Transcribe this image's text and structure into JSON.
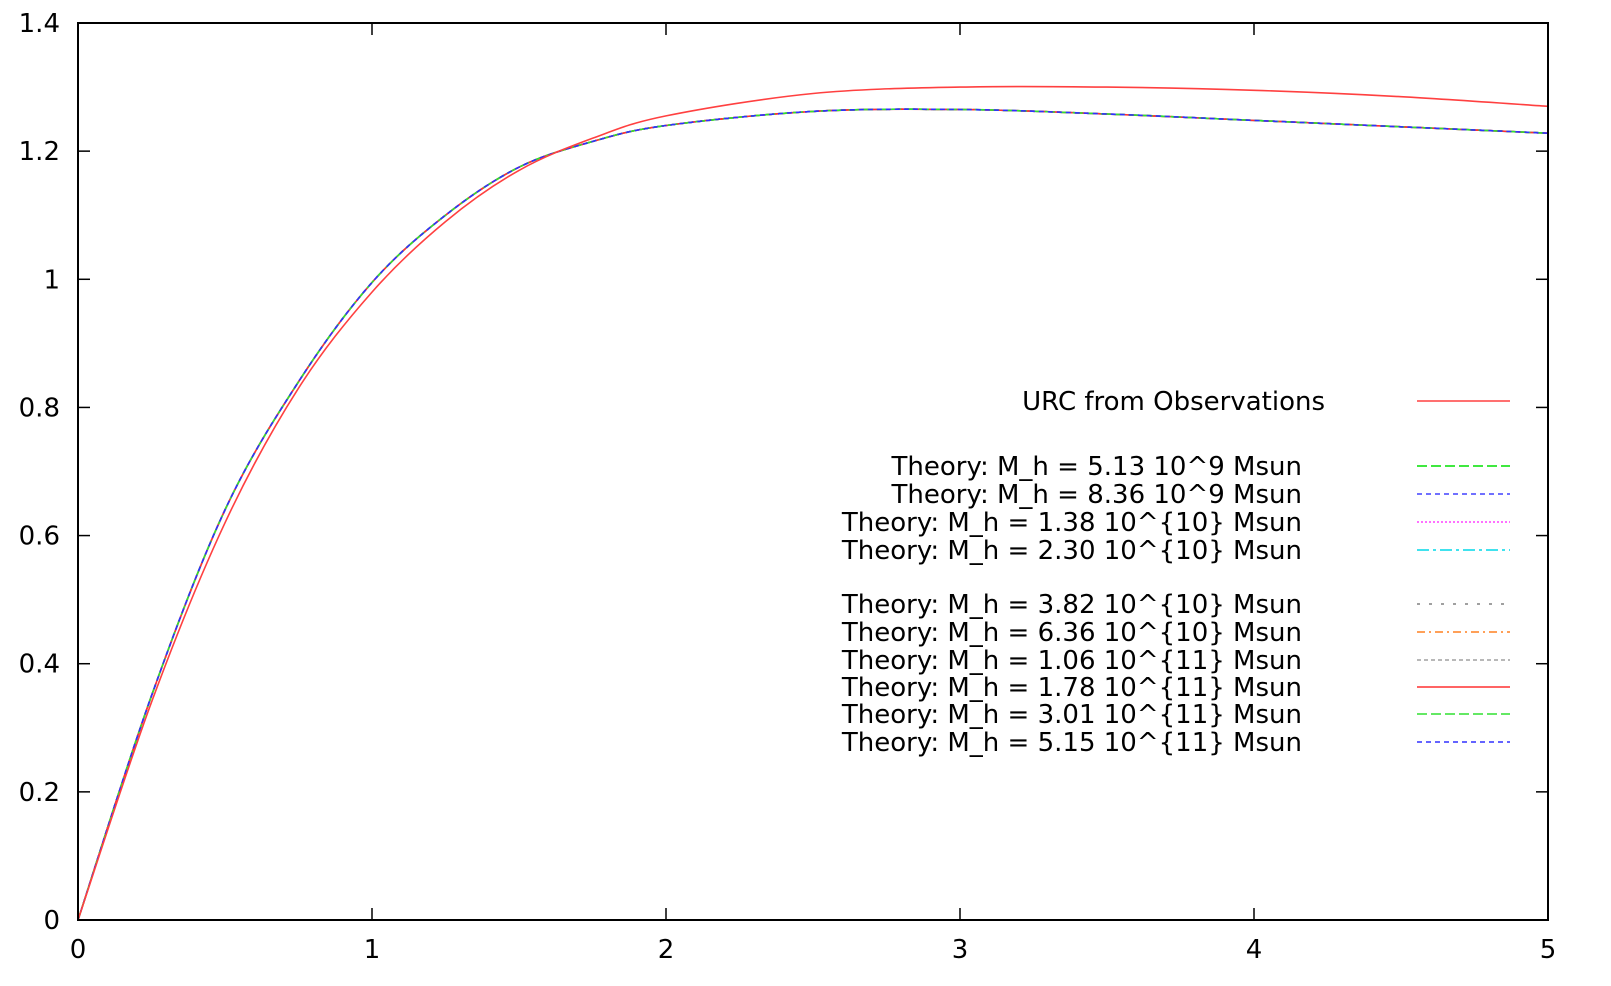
{
  "chart_data": {
    "type": "line",
    "title": "",
    "xlabel": "",
    "ylabel": "",
    "xlim": [
      0,
      5
    ],
    "ylim": [
      0,
      1.4
    ],
    "grid": false,
    "legend_position": "right",
    "x_ticks": [
      "0",
      "1",
      "2",
      "3",
      "4",
      "5"
    ],
    "y_ticks": [
      "0",
      "0.2",
      "0.4",
      "0.6",
      "0.8",
      "1",
      "1.2",
      "1.4"
    ],
    "x_tick_values": [
      0,
      1,
      2,
      3,
      4,
      5
    ],
    "y_tick_values": [
      0,
      0.2,
      0.4,
      0.6,
      0.8,
      1.0,
      1.2,
      1.4
    ],
    "x": [
      0,
      0.25,
      0.5,
      0.75,
      1.0,
      1.25,
      1.5,
      1.75,
      2.0,
      2.5,
      3.0,
      3.5,
      4.0,
      4.5,
      5.0
    ],
    "series": [
      {
        "name": "URC from Observations",
        "color": "#ff4040",
        "dash": "",
        "values": [
          0,
          0.34,
          0.62,
          0.83,
          0.98,
          1.09,
          1.17,
          1.22,
          1.255,
          1.29,
          1.3,
          1.3,
          1.295,
          1.285,
          1.27
        ]
      },
      {
        "name": "Theory: M_h = 5.13 10^9 Msun",
        "color": "#00e000",
        "dash": "10,4",
        "values": [
          0,
          0.35,
          0.64,
          0.84,
          0.995,
          1.1,
          1.175,
          1.215,
          1.24,
          1.262,
          1.265,
          1.258,
          1.248,
          1.238,
          1.228
        ]
      },
      {
        "name": "Theory: M_h = 8.36 10^9 Msun",
        "color": "#4040ff",
        "dash": "5,4",
        "values": [
          0,
          0.35,
          0.64,
          0.84,
          0.995,
          1.1,
          1.175,
          1.215,
          1.24,
          1.262,
          1.265,
          1.258,
          1.248,
          1.238,
          1.228
        ]
      },
      {
        "name": "Theory: M_h = 1.38 10^{10} Msun",
        "color": "#ff40ff",
        "dash": "2,2",
        "values": [
          0,
          0.35,
          0.64,
          0.84,
          0.995,
          1.1,
          1.175,
          1.215,
          1.24,
          1.262,
          1.265,
          1.258,
          1.248,
          1.238,
          1.228
        ]
      },
      {
        "name": "Theory: M_h = 2.30 10^{10} Msun",
        "color": "#00d8e8",
        "dash": "12,4,3,4",
        "values": [
          0,
          0.35,
          0.64,
          0.84,
          0.995,
          1.1,
          1.175,
          1.215,
          1.24,
          1.262,
          1.265,
          1.258,
          1.248,
          1.238,
          1.228
        ]
      },
      {
        "name": "Theory: M_h = 3.82 10^{10} Msun",
        "color": "#808080",
        "dash": "3,9",
        "values": [
          0,
          0.35,
          0.64,
          0.84,
          0.995,
          1.1,
          1.175,
          1.215,
          1.24,
          1.262,
          1.265,
          1.258,
          1.248,
          1.238,
          1.228
        ]
      },
      {
        "name": "Theory: M_h = 6.36 10^{10} Msun",
        "color": "#ff8020",
        "dash": "8,4,2,4",
        "values": [
          0,
          0.35,
          0.64,
          0.84,
          0.995,
          1.1,
          1.175,
          1.215,
          1.24,
          1.262,
          1.265,
          1.258,
          1.248,
          1.238,
          1.228
        ]
      },
      {
        "name": "Theory: M_h = 1.06 10^{11} Msun",
        "color": "#a0a0a0",
        "dash": "4,3",
        "values": [
          0,
          0.35,
          0.64,
          0.84,
          0.995,
          1.1,
          1.175,
          1.215,
          1.24,
          1.262,
          1.265,
          1.258,
          1.248,
          1.238,
          1.228
        ]
      },
      {
        "name": "Theory: M_h = 1.78 10^{11} Msun",
        "color": "#ff3030",
        "dash": "",
        "values": [
          0,
          0.35,
          0.64,
          0.84,
          0.995,
          1.1,
          1.175,
          1.215,
          1.24,
          1.262,
          1.265,
          1.258,
          1.248,
          1.238,
          1.228
        ]
      },
      {
        "name": "Theory: M_h = 3.01 10^{11} Msun",
        "color": "#30e030",
        "dash": "10,4",
        "values": [
          0,
          0.35,
          0.64,
          0.84,
          0.995,
          1.1,
          1.175,
          1.215,
          1.24,
          1.262,
          1.265,
          1.258,
          1.248,
          1.238,
          1.228
        ]
      },
      {
        "name": "Theory: M_h = 5.15 10^{11} Msun",
        "color": "#3030ff",
        "dash": "5,4",
        "values": [
          0,
          0.35,
          0.64,
          0.84,
          0.995,
          1.1,
          1.175,
          1.215,
          1.24,
          1.262,
          1.265,
          1.258,
          1.248,
          1.238,
          1.228
        ]
      }
    ]
  }
}
